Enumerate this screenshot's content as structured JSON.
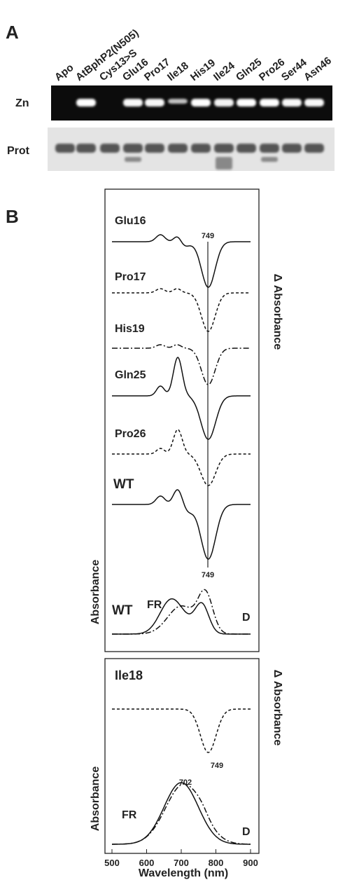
{
  "panel_a": {
    "label": "A",
    "lanes": [
      "Apo",
      "AtBphP2(N505)",
      "Cys13>S",
      "Glu16",
      "Pro17",
      "Ile18",
      "His19",
      "Ile24",
      "Gln25",
      "Pro26",
      "Ser44",
      "Asn46"
    ],
    "rows": [
      "Zn",
      "Prot"
    ]
  },
  "panel_b": {
    "label": "B",
    "top": {
      "traces": [
        "Glu16",
        "Pro17",
        "His19",
        "Gln25",
        "Pro26",
        "WT"
      ],
      "peak_top": "749",
      "peak_bottom": "749",
      "fr": "FR",
      "d": "D",
      "wt": "WT",
      "y_label": "Absorbance",
      "y2_label": "Δ Absorbance"
    },
    "bottom": {
      "trace": "Ile18",
      "peak_diff": "749",
      "peak_abs": "702",
      "fr": "FR",
      "d": "D",
      "y_label": "Absorbance",
      "y2_label": "Δ Absorbance"
    },
    "x_ticks": [
      500,
      600,
      700,
      800,
      900
    ],
    "x_label": "Wavelength (nm)"
  }
}
